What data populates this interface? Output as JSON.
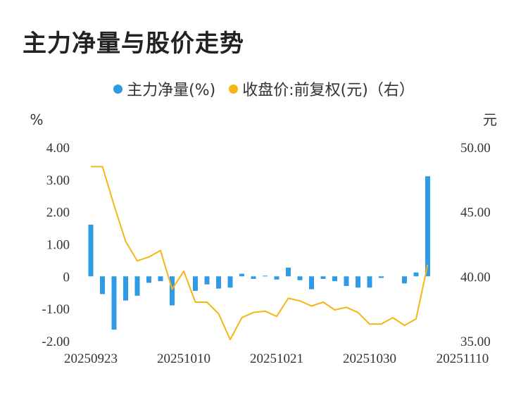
{
  "chart_data": {
    "type": "bar",
    "title": "主力净量与股价走势",
    "legend": [
      {
        "name": "主力净量(%)",
        "color": "#2f9be6"
      },
      {
        "name": "收盘价:前复权(元)（右）",
        "color": "#f5b512"
      }
    ],
    "left_unit": "%",
    "right_unit": "元",
    "left_ylim": [
      -2,
      4
    ],
    "right_ylim": [
      35,
      50
    ],
    "left_ticks": [
      "4.00",
      "3.00",
      "2.00",
      "1.00",
      "0",
      "-1.00",
      "-2.00"
    ],
    "right_ticks": [
      "50.00",
      "45.00",
      "40.00",
      "35.00"
    ],
    "x_tick_labels": [
      "20250923",
      "20251010",
      "20251021",
      "20251030",
      "20251110"
    ],
    "x_tick_positions": [
      0,
      8,
      16,
      24,
      32
    ],
    "series": [
      {
        "name": "主力净量(%)",
        "type": "bar",
        "values": [
          1.6,
          -0.55,
          -1.65,
          -0.75,
          -0.6,
          -0.2,
          -0.15,
          -0.9,
          0,
          -0.45,
          -0.25,
          -0.38,
          -0.35,
          0.08,
          -0.08,
          0.02,
          -0.1,
          0.27,
          -0.12,
          -0.4,
          -0.08,
          -0.15,
          -0.3,
          -0.35,
          -0.35,
          -0.05,
          0,
          -0.22,
          0.12,
          3.1
        ]
      },
      {
        "name": "收盘价:前复权(元)（右）",
        "type": "line",
        "values": [
          48.5,
          48.5,
          45.5,
          42.7,
          41.2,
          41.5,
          42.0,
          39.0,
          40.4,
          38.0,
          38.0,
          37.1,
          35.1,
          36.8,
          37.2,
          37.3,
          36.9,
          38.3,
          38.1,
          37.7,
          38.0,
          37.4,
          37.6,
          37.2,
          36.3,
          36.3,
          36.8,
          36.2,
          36.7,
          40.9
        ]
      }
    ]
  }
}
